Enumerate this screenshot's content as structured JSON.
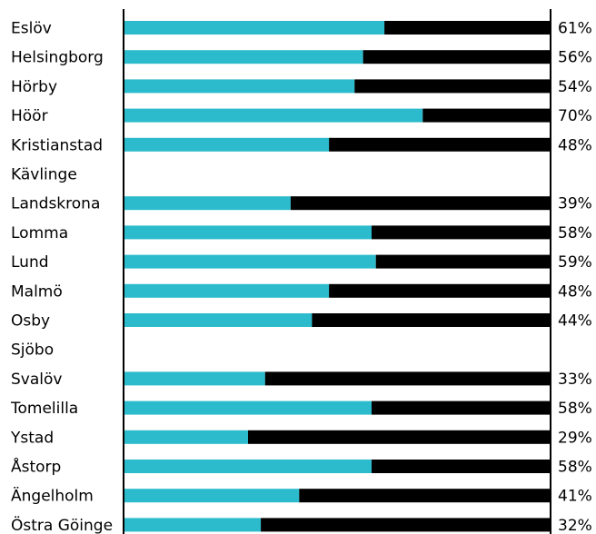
{
  "chart_data": {
    "type": "bar",
    "orientation": "horizontal",
    "stacked": true,
    "categories": [
      "Eslöv",
      "Helsingborg",
      "Hörby",
      "Höör",
      "Kristianstad",
      "Kävlinge",
      "Landskrona",
      "Lomma",
      "Lund",
      "Malmö",
      "Osby",
      "Sjöbo",
      "Svalöv",
      "Tomelilla",
      "Ystad",
      "Åstorp",
      "Ängelholm",
      "Östra Göinge"
    ],
    "values": [
      61,
      56,
      54,
      70,
      48,
      null,
      39,
      58,
      59,
      48,
      44,
      null,
      33,
      58,
      29,
      58,
      41,
      32
    ],
    "value_labels": [
      "61%",
      "56%",
      "54%",
      "70%",
      "48%",
      "",
      "39%",
      "58%",
      "59%",
      "48%",
      "44%",
      "",
      "33%",
      "58%",
      "29%",
      "58%",
      "41%",
      "32%"
    ],
    "xlim": [
      0,
      100
    ],
    "unit": "%",
    "colors": {
      "primary": "#2bbbcc",
      "remainder": "#000000"
    },
    "grid": false,
    "legend": "none"
  }
}
